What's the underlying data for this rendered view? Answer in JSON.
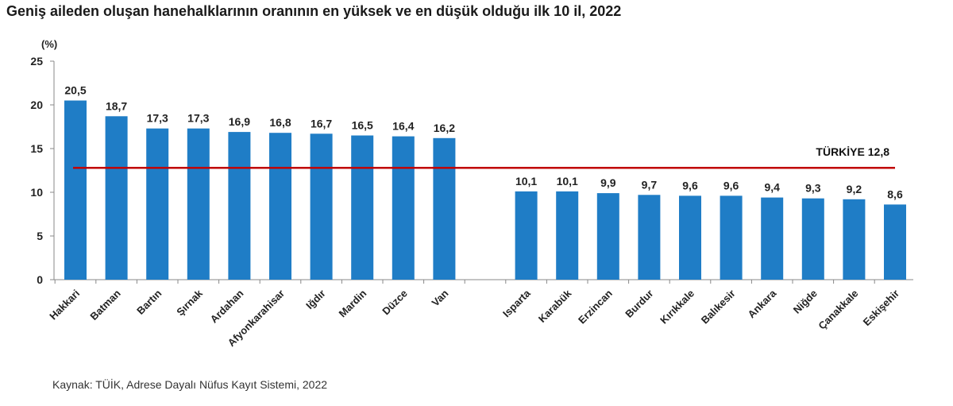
{
  "title": "Geniş aileden oluşan hanehalklarının oranının en yüksek ve en düşük olduğu ilk 10 il, 2022",
  "source": "Kaynak: TÜİK, Adrese Dayalı Nüfus Kayıt Sistemi, 2022",
  "chart_data": {
    "type": "bar",
    "unit_label": "(%)",
    "categories": [
      "Hakkari",
      "Batman",
      "Bartın",
      "Şırnak",
      "Ardahan",
      "Afyonkarahisar",
      "Iğdır",
      "Mardin",
      "Düzce",
      "Van",
      "Isparta",
      "Karabük",
      "Erzincan",
      "Burdur",
      "Kırıkkale",
      "Balıkesir",
      "Ankara",
      "Niğde",
      "Çanakkale",
      "Eskişehir"
    ],
    "values": [
      20.5,
      18.7,
      17.3,
      17.3,
      16.9,
      16.8,
      16.7,
      16.5,
      16.4,
      16.2,
      10.1,
      10.1,
      9.9,
      9.7,
      9.6,
      9.6,
      9.4,
      9.3,
      9.2,
      8.6
    ],
    "value_labels": [
      "20,5",
      "18,7",
      "17,3",
      "17,3",
      "16,9",
      "16,8",
      "16,7",
      "16,5",
      "16,4",
      "16,2",
      "10,1",
      "10,1",
      "9,9",
      "9,7",
      "9,6",
      "9,6",
      "9,4",
      "9,3",
      "9,2",
      "8,6"
    ],
    "yticks": [
      "0",
      "5",
      "10",
      "15",
      "20",
      "25"
    ],
    "ylim": [
      0,
      25
    ],
    "reference_line": {
      "label": "TÜRKİYE  12,8",
      "value": 12.8,
      "color": "#c00000"
    },
    "bar_color": "#1f7dc6",
    "grid": false
  }
}
